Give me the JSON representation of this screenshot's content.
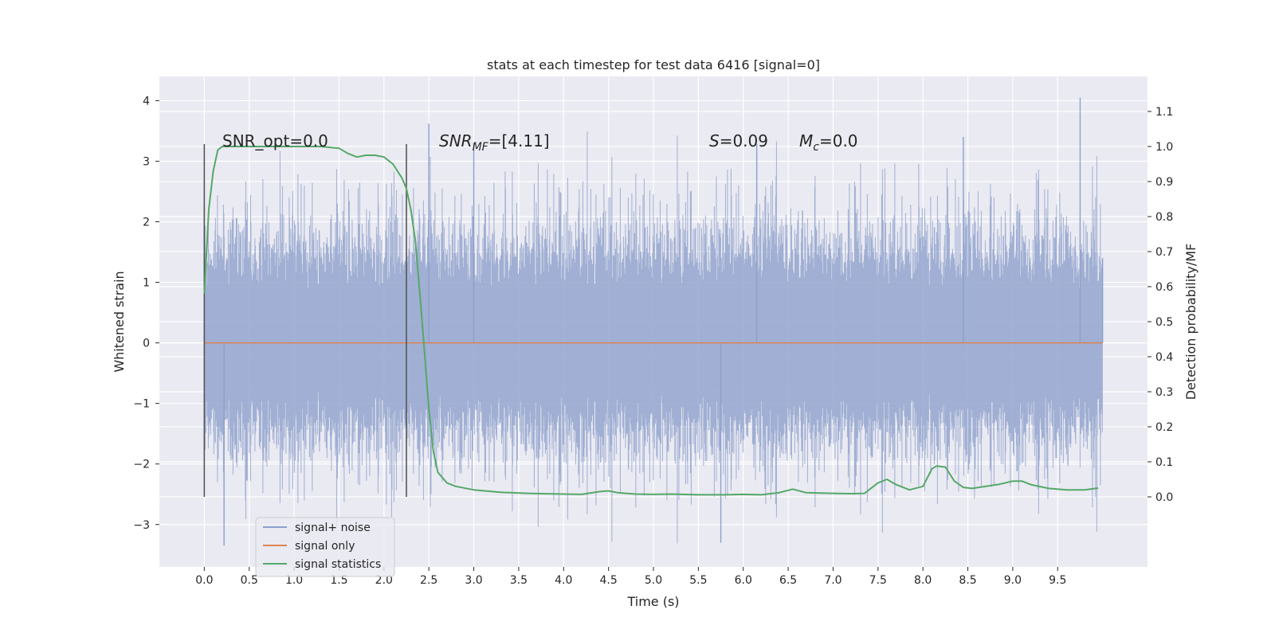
{
  "chart_data": {
    "type": "line",
    "title": "stats at each timestep for test data 6416 [signal=0]",
    "xlabel": "Time (s)",
    "ylabel_left": "Whitened strain",
    "ylabel_right": "Detection probability/MF",
    "xlim": [
      -0.5,
      10.5
    ],
    "ylim_left": [
      -3.7,
      4.4
    ],
    "ylim_right": [
      -0.2,
      1.2
    ],
    "x_ticks": [
      "0.0",
      "0.5",
      "1.0",
      "1.5",
      "2.0",
      "2.5",
      "3.0",
      "3.5",
      "4.0",
      "4.5",
      "5.0",
      "5.5",
      "6.0",
      "6.5",
      "7.0",
      "7.5",
      "8.0",
      "8.5",
      "9.0",
      "9.5"
    ],
    "y_ticks_left": [
      "−3",
      "−2",
      "−1",
      "0",
      "1",
      "2",
      "3",
      "4"
    ],
    "y_ticks_right": [
      "0.0",
      "0.1",
      "0.2",
      "0.3",
      "0.4",
      "0.5",
      "0.6",
      "0.7",
      "0.8",
      "0.9",
      "1.0",
      "1.1"
    ],
    "grid": true,
    "legend_position": "lower-left",
    "colors": {
      "background": "#eaeaf2",
      "grid": "#ffffff",
      "noise": "#8da0cb",
      "signal": "#dd8452",
      "stats": "#55a868",
      "marker": "#555555"
    },
    "annotations": {
      "snr_opt": "SNR_opt=0.0",
      "snr_mf_main": "SNR",
      "snr_mf_sub": "MF",
      "snr_mf_value": "=[4.11]",
      "s_symbol": "S",
      "s_value": "=0.09",
      "mc_symbol": "M",
      "mc_sub": "c",
      "mc_value": "=0.0"
    },
    "vertical_markers": [
      0.0,
      2.25
    ],
    "noise_band": {
      "x_range": [
        0.0,
        10.0
      ],
      "core_range": [
        -1.5,
        1.5
      ],
      "peak_max": 4.05,
      "peak_min": -3.35
    },
    "series": [
      {
        "name": "signal+ noise",
        "axis": "left",
        "description_points": [
          [
            0.0,
            2.25
          ],
          [
            0.22,
            -3.35
          ],
          [
            2.5,
            3.62
          ],
          [
            3.0,
            3.3
          ],
          [
            5.75,
            -3.3
          ],
          [
            6.15,
            3.28
          ],
          [
            8.45,
            3.4
          ],
          [
            9.75,
            4.05
          ],
          [
            10.0,
            1.4
          ]
        ]
      },
      {
        "name": "signal only",
        "axis": "left",
        "x": [
          0.0,
          10.0
        ],
        "values": [
          0.0,
          0.0
        ]
      },
      {
        "name": "signal statistics",
        "axis": "right",
        "x": [
          0.0,
          0.05,
          0.1,
          0.15,
          0.2,
          0.3,
          0.5,
          0.8,
          1.0,
          1.3,
          1.5,
          1.6,
          1.7,
          1.8,
          1.9,
          2.0,
          2.1,
          2.2,
          2.25,
          2.3,
          2.35,
          2.4,
          2.45,
          2.5,
          2.55,
          2.6,
          2.7,
          2.8,
          3.0,
          3.3,
          3.6,
          4.0,
          4.2,
          4.4,
          4.5,
          4.6,
          4.8,
          5.0,
          5.2,
          5.5,
          5.8,
          6.0,
          6.2,
          6.4,
          6.55,
          6.7,
          7.0,
          7.2,
          7.35,
          7.5,
          7.6,
          7.7,
          7.85,
          8.0,
          8.1,
          8.15,
          8.25,
          8.35,
          8.45,
          8.55,
          8.7,
          8.85,
          9.0,
          9.1,
          9.2,
          9.4,
          9.6,
          9.8,
          9.95
        ],
        "values": [
          0.58,
          0.82,
          0.93,
          0.99,
          1.0,
          1.0,
          1.0,
          1.0,
          1.0,
          1.0,
          0.995,
          0.98,
          0.97,
          0.975,
          0.975,
          0.97,
          0.95,
          0.91,
          0.88,
          0.82,
          0.73,
          0.58,
          0.42,
          0.25,
          0.13,
          0.07,
          0.04,
          0.03,
          0.02,
          0.013,
          0.01,
          0.008,
          0.007,
          0.015,
          0.017,
          0.012,
          0.008,
          0.007,
          0.008,
          0.006,
          0.006,
          0.007,
          0.006,
          0.012,
          0.022,
          0.012,
          0.01,
          0.009,
          0.01,
          0.04,
          0.05,
          0.035,
          0.02,
          0.03,
          0.08,
          0.088,
          0.085,
          0.045,
          0.027,
          0.024,
          0.03,
          0.036,
          0.045,
          0.045,
          0.035,
          0.024,
          0.02,
          0.02,
          0.025
        ]
      }
    ]
  }
}
